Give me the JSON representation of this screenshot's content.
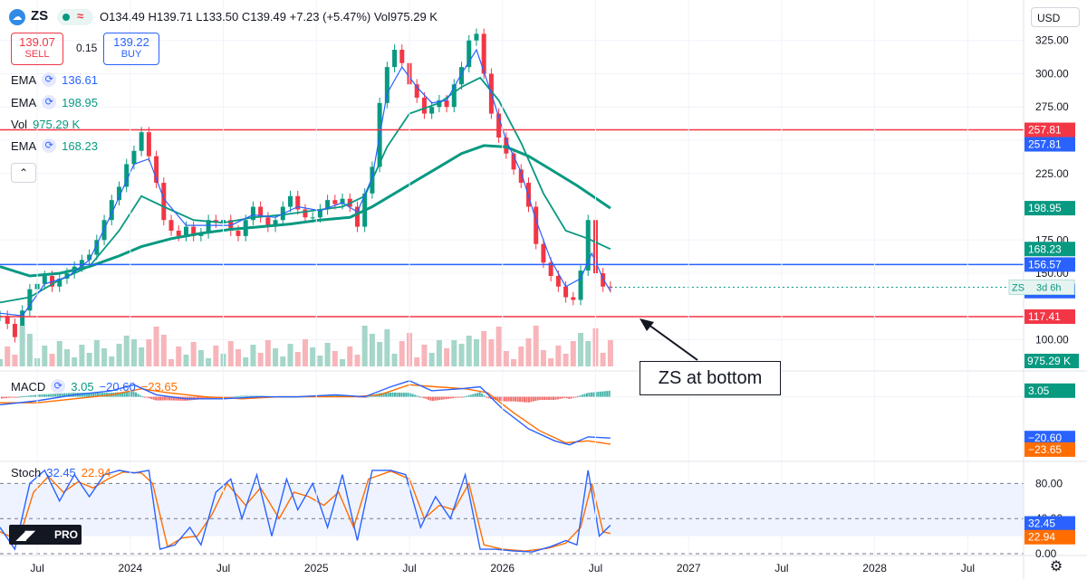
{
  "header": {
    "symbol": "ZS",
    "ohlc_text": "O134.49 H139.71 L133.50 C139.49 +7.23 (+5.47%) Vol975.29 K",
    "sell_price": "139.07",
    "sell_label": "SELL",
    "spread": "0.15",
    "buy_price": "139.22",
    "buy_label": "BUY",
    "currency": "USD"
  },
  "legend": [
    {
      "name": "EMA",
      "value": "136.61",
      "color": "#2962ff"
    },
    {
      "name": "EMA",
      "value": "198.95",
      "color": "#089981"
    },
    {
      "name": "Vol",
      "value": "975.29 K",
      "color": "#089981"
    },
    {
      "name": "EMA",
      "value": "168.23",
      "color": "#089981"
    }
  ],
  "macd_legend": {
    "name": "MACD",
    "v1": "3.05",
    "v2": "−20.60",
    "v3": "−23.65"
  },
  "stoch_legend": {
    "name": "Stoch",
    "v1": "32.45",
    "v2": "22.94"
  },
  "annotation": "ZS at bottom",
  "logo_text": "PRO",
  "chart_data": {
    "type": "candlestick",
    "price_axis_ticks": [
      "325.00",
      "300.00",
      "275.00",
      "250.00",
      "225.00",
      "175.00",
      "150.00",
      "100.00"
    ],
    "price_ylim": [
      80,
      335
    ],
    "time_ticks": [
      {
        "label": "Jul",
        "t": 2023.5
      },
      {
        "label": "2024",
        "t": 2024.0
      },
      {
        "label": "Jul",
        "t": 2024.5
      },
      {
        "label": "2025",
        "t": 2025.0
      },
      {
        "label": "Jul",
        "t": 2025.5
      },
      {
        "label": "2026",
        "t": 2026.0
      },
      {
        "label": "Jul",
        "t": 2026.5
      },
      {
        "label": "2027",
        "t": 2027.0
      },
      {
        "label": "Jul",
        "t": 2027.5
      },
      {
        "label": "2028",
        "t": 2028.0
      },
      {
        "label": "Jul",
        "t": 2028.5
      }
    ],
    "x_range": [
      2023.3,
      2028.8
    ],
    "close_series": [
      [
        2023.3,
        118
      ],
      [
        2023.34,
        112
      ],
      [
        2023.38,
        102
      ],
      [
        2023.42,
        122
      ],
      [
        2023.46,
        138
      ],
      [
        2023.5,
        142
      ],
      [
        2023.54,
        148
      ],
      [
        2023.58,
        140
      ],
      [
        2023.62,
        146
      ],
      [
        2023.66,
        150
      ],
      [
        2023.7,
        155
      ],
      [
        2023.74,
        160
      ],
      [
        2023.78,
        164
      ],
      [
        2023.82,
        175
      ],
      [
        2023.86,
        190
      ],
      [
        2023.9,
        205
      ],
      [
        2023.94,
        215
      ],
      [
        2023.98,
        232
      ],
      [
        2024.02,
        242
      ],
      [
        2024.06,
        256
      ],
      [
        2024.1,
        238
      ],
      [
        2024.14,
        218
      ],
      [
        2024.18,
        190
      ],
      [
        2024.22,
        182
      ],
      [
        2024.26,
        178
      ],
      [
        2024.3,
        185
      ],
      [
        2024.34,
        178
      ],
      [
        2024.38,
        180
      ],
      [
        2024.42,
        190
      ],
      [
        2024.46,
        188
      ],
      [
        2024.5,
        190
      ],
      [
        2024.54,
        182
      ],
      [
        2024.58,
        178
      ],
      [
        2024.62,
        190
      ],
      [
        2024.66,
        200
      ],
      [
        2024.7,
        192
      ],
      [
        2024.74,
        185
      ],
      [
        2024.78,
        190
      ],
      [
        2024.82,
        200
      ],
      [
        2024.86,
        208
      ],
      [
        2024.9,
        198
      ],
      [
        2024.94,
        192
      ],
      [
        2024.98,
        192
      ],
      [
        2025.02,
        198
      ],
      [
        2025.06,
        205
      ],
      [
        2025.1,
        202
      ],
      [
        2025.14,
        206
      ],
      [
        2025.18,
        200
      ],
      [
        2025.22,
        185
      ],
      [
        2025.26,
        210
      ],
      [
        2025.3,
        230
      ],
      [
        2025.34,
        278
      ],
      [
        2025.38,
        305
      ],
      [
        2025.42,
        318
      ],
      [
        2025.46,
        308
      ],
      [
        2025.5,
        292
      ],
      [
        2025.54,
        282
      ],
      [
        2025.58,
        270
      ],
      [
        2025.62,
        275
      ],
      [
        2025.66,
        280
      ],
      [
        2025.7,
        275
      ],
      [
        2025.74,
        292
      ],
      [
        2025.78,
        305
      ],
      [
        2025.82,
        325
      ],
      [
        2025.86,
        330
      ],
      [
        2025.9,
        300
      ],
      [
        2025.94,
        270
      ],
      [
        2025.98,
        252
      ],
      [
        2026.02,
        240
      ],
      [
        2026.06,
        228
      ],
      [
        2026.1,
        218
      ],
      [
        2026.14,
        200
      ],
      [
        2026.18,
        172
      ],
      [
        2026.22,
        158
      ],
      [
        2026.26,
        148
      ],
      [
        2026.3,
        140
      ],
      [
        2026.34,
        132
      ],
      [
        2026.38,
        130
      ],
      [
        2026.42,
        152
      ],
      [
        2026.46,
        190
      ],
      [
        2026.5,
        150
      ],
      [
        2026.54,
        140
      ],
      [
        2026.58,
        139.49
      ]
    ],
    "ema_fast_series": [
      [
        2023.3,
        120
      ],
      [
        2023.42,
        118
      ],
      [
        2023.54,
        142
      ],
      [
        2023.66,
        147
      ],
      [
        2023.78,
        160
      ],
      [
        2023.9,
        195
      ],
      [
        2024.02,
        232
      ],
      [
        2024.1,
        236
      ],
      [
        2024.18,
        206
      ],
      [
        2024.3,
        186
      ],
      [
        2024.42,
        186
      ],
      [
        2024.54,
        186
      ],
      [
        2024.66,
        194
      ],
      [
        2024.78,
        192
      ],
      [
        2024.9,
        200
      ],
      [
        2025.02,
        197
      ],
      [
        2025.14,
        203
      ],
      [
        2025.22,
        196
      ],
      [
        2025.3,
        222
      ],
      [
        2025.38,
        285
      ],
      [
        2025.46,
        305
      ],
      [
        2025.54,
        290
      ],
      [
        2025.62,
        278
      ],
      [
        2025.7,
        280
      ],
      [
        2025.78,
        300
      ],
      [
        2025.86,
        318
      ],
      [
        2025.94,
        285
      ],
      [
        2026.02,
        250
      ],
      [
        2026.1,
        226
      ],
      [
        2026.18,
        190
      ],
      [
        2026.26,
        160
      ],
      [
        2026.34,
        140
      ],
      [
        2026.42,
        146
      ],
      [
        2026.48,
        165
      ],
      [
        2026.54,
        146
      ],
      [
        2026.58,
        136.61
      ]
    ],
    "ema_mid_series": [
      [
        2023.3,
        128
      ],
      [
        2023.46,
        132
      ],
      [
        2023.62,
        145
      ],
      [
        2023.78,
        155
      ],
      [
        2023.94,
        182
      ],
      [
        2024.06,
        208
      ],
      [
        2024.18,
        200
      ],
      [
        2024.34,
        190
      ],
      [
        2024.5,
        188
      ],
      [
        2024.66,
        192
      ],
      [
        2024.82,
        194
      ],
      [
        2024.98,
        197
      ],
      [
        2025.14,
        200
      ],
      [
        2025.26,
        208
      ],
      [
        2025.38,
        245
      ],
      [
        2025.5,
        270
      ],
      [
        2025.66,
        278
      ],
      [
        2025.78,
        290
      ],
      [
        2025.88,
        297
      ],
      [
        2025.98,
        280
      ],
      [
        2026.1,
        248
      ],
      [
        2026.22,
        210
      ],
      [
        2026.34,
        182
      ],
      [
        2026.46,
        176
      ],
      [
        2026.58,
        168.23
      ]
    ],
    "ema_slow_series": [
      [
        2023.3,
        155
      ],
      [
        2023.46,
        148
      ],
      [
        2023.62,
        150
      ],
      [
        2023.78,
        155
      ],
      [
        2023.94,
        163
      ],
      [
        2024.06,
        170
      ],
      [
        2024.22,
        176
      ],
      [
        2024.38,
        180
      ],
      [
        2024.54,
        183
      ],
      [
        2024.7,
        185
      ],
      [
        2024.86,
        187
      ],
      [
        2025.02,
        190
      ],
      [
        2025.18,
        192
      ],
      [
        2025.3,
        200
      ],
      [
        2025.42,
        210
      ],
      [
        2025.54,
        220
      ],
      [
        2025.66,
        230
      ],
      [
        2025.78,
        240
      ],
      [
        2025.9,
        246
      ],
      [
        2026.02,
        245
      ],
      [
        2026.14,
        238
      ],
      [
        2026.26,
        228
      ],
      [
        2026.4,
        216
      ],
      [
        2026.58,
        198.95
      ]
    ],
    "horizontal_lines": [
      {
        "price": 257.81,
        "color": "#f23645",
        "label": "257.81"
      },
      {
        "price": 156.57,
        "color": "#2962ff",
        "label": "156.57"
      },
      {
        "price": 117.41,
        "color": "#f23645",
        "label": "117.41"
      }
    ],
    "price_labels": [
      {
        "price": 257.81,
        "text": "257.81",
        "color": "#2962ff"
      },
      {
        "price": 198.95,
        "text": "198.95",
        "color": "#089981"
      },
      {
        "price": 168.23,
        "text": "168.23",
        "color": "#089981"
      },
      {
        "price": 136.61,
        "text": "136.61",
        "color": "#2962ff"
      }
    ],
    "last_price_label": {
      "symbol": "ZS",
      "countdown": "3d 6h"
    },
    "volume_label": "975.29 K",
    "macd": {
      "ylim": [
        -30,
        12
      ],
      "ticks": [
        "3.05"
      ],
      "labels": [
        {
          "value": 3.05,
          "text": "3.05",
          "color": "#089981"
        },
        {
          "value": -20.6,
          "text": "−20.60",
          "color": "#2962ff"
        },
        {
          "value": -23.65,
          "text": "−23.65",
          "color": "#ff6d00"
        }
      ],
      "macd_series": [
        [
          2023.3,
          -4
        ],
        [
          2023.5,
          -2
        ],
        [
          2023.7,
          1
        ],
        [
          2023.9,
          3
        ],
        [
          2024.02,
          6
        ],
        [
          2024.14,
          1
        ],
        [
          2024.3,
          -1
        ],
        [
          2024.5,
          -1
        ],
        [
          2024.7,
          0
        ],
        [
          2024.9,
          0
        ],
        [
          2025.1,
          1
        ],
        [
          2025.26,
          0
        ],
        [
          2025.4,
          5
        ],
        [
          2025.5,
          8
        ],
        [
          2025.62,
          3
        ],
        [
          2025.78,
          4
        ],
        [
          2025.88,
          5
        ],
        [
          2026.0,
          -6
        ],
        [
          2026.14,
          -16
        ],
        [
          2026.28,
          -22
        ],
        [
          2026.36,
          -24
        ],
        [
          2026.46,
          -20
        ],
        [
          2026.58,
          -20.6
        ]
      ],
      "signal_series": [
        [
          2023.3,
          -3
        ],
        [
          2023.5,
          -3
        ],
        [
          2023.7,
          -1
        ],
        [
          2023.9,
          1
        ],
        [
          2024.06,
          4
        ],
        [
          2024.2,
          2
        ],
        [
          2024.4,
          0
        ],
        [
          2024.6,
          -1
        ],
        [
          2024.8,
          0
        ],
        [
          2025.0,
          0
        ],
        [
          2025.2,
          0
        ],
        [
          2025.34,
          1
        ],
        [
          2025.5,
          6
        ],
        [
          2025.64,
          5
        ],
        [
          2025.8,
          4
        ],
        [
          2025.92,
          2
        ],
        [
          2026.06,
          -8
        ],
        [
          2026.2,
          -17
        ],
        [
          2026.34,
          -23
        ],
        [
          2026.46,
          -22
        ],
        [
          2026.58,
          -23.65
        ]
      ]
    },
    "stoch": {
      "ylim": [
        0,
        100
      ],
      "ticks": [
        80,
        40,
        0
      ],
      "tick_labels": [
        "80.00",
        "40.00",
        "0.00"
      ],
      "band": [
        20,
        80
      ],
      "labels": [
        {
          "value": 32.45,
          "text": "32.45",
          "color": "#2962ff"
        },
        {
          "value": 22.94,
          "text": "22.94",
          "color": "#ff6d00"
        }
      ],
      "k_series": [
        [
          2023.3,
          30
        ],
        [
          2023.38,
          5
        ],
        [
          2023.46,
          80
        ],
        [
          2023.54,
          95
        ],
        [
          2023.62,
          60
        ],
        [
          2023.7,
          90
        ],
        [
          2023.78,
          65
        ],
        [
          2023.86,
          90
        ],
        [
          2023.94,
          95
        ],
        [
          2024.02,
          92
        ],
        [
          2024.1,
          95
        ],
        [
          2024.16,
          5
        ],
        [
          2024.24,
          10
        ],
        [
          2024.32,
          30
        ],
        [
          2024.38,
          10
        ],
        [
          2024.46,
          70
        ],
        [
          2024.54,
          85
        ],
        [
          2024.6,
          40
        ],
        [
          2024.68,
          90
        ],
        [
          2024.76,
          20
        ],
        [
          2024.84,
          85
        ],
        [
          2024.9,
          50
        ],
        [
          2024.98,
          80
        ],
        [
          2025.06,
          30
        ],
        [
          2025.14,
          90
        ],
        [
          2025.22,
          15
        ],
        [
          2025.3,
          95
        ],
        [
          2025.4,
          95
        ],
        [
          2025.48,
          90
        ],
        [
          2025.56,
          30
        ],
        [
          2025.64,
          65
        ],
        [
          2025.72,
          40
        ],
        [
          2025.8,
          90
        ],
        [
          2025.88,
          5
        ],
        [
          2025.96,
          5
        ],
        [
          2026.06,
          3
        ],
        [
          2026.16,
          2
        ],
        [
          2026.26,
          8
        ],
        [
          2026.34,
          15
        ],
        [
          2026.4,
          10
        ],
        [
          2026.46,
          95
        ],
        [
          2026.52,
          20
        ],
        [
          2026.58,
          32.45
        ]
      ],
      "d_series": [
        [
          2023.3,
          25
        ],
        [
          2023.4,
          15
        ],
        [
          2023.48,
          70
        ],
        [
          2023.56,
          88
        ],
        [
          2023.64,
          70
        ],
        [
          2023.72,
          82
        ],
        [
          2023.8,
          75
        ],
        [
          2023.88,
          85
        ],
        [
          2023.96,
          93
        ],
        [
          2024.06,
          92
        ],
        [
          2024.12,
          80
        ],
        [
          2024.2,
          8
        ],
        [
          2024.28,
          18
        ],
        [
          2024.36,
          20
        ],
        [
          2024.44,
          45
        ],
        [
          2024.52,
          80
        ],
        [
          2024.62,
          55
        ],
        [
          2024.7,
          75
        ],
        [
          2024.8,
          40
        ],
        [
          2024.88,
          70
        ],
        [
          2024.96,
          65
        ],
        [
          2025.04,
          55
        ],
        [
          2025.12,
          70
        ],
        [
          2025.2,
          30
        ],
        [
          2025.28,
          85
        ],
        [
          2025.4,
          94
        ],
        [
          2025.5,
          85
        ],
        [
          2025.58,
          40
        ],
        [
          2025.66,
          55
        ],
        [
          2025.74,
          50
        ],
        [
          2025.82,
          80
        ],
        [
          2025.9,
          10
        ],
        [
          2026.0,
          5
        ],
        [
          2026.12,
          3
        ],
        [
          2026.24,
          6
        ],
        [
          2026.34,
          12
        ],
        [
          2026.42,
          30
        ],
        [
          2026.48,
          80
        ],
        [
          2026.54,
          25
        ],
        [
          2026.58,
          22.94
        ]
      ]
    },
    "grid": true,
    "legend_position": "top-left"
  }
}
